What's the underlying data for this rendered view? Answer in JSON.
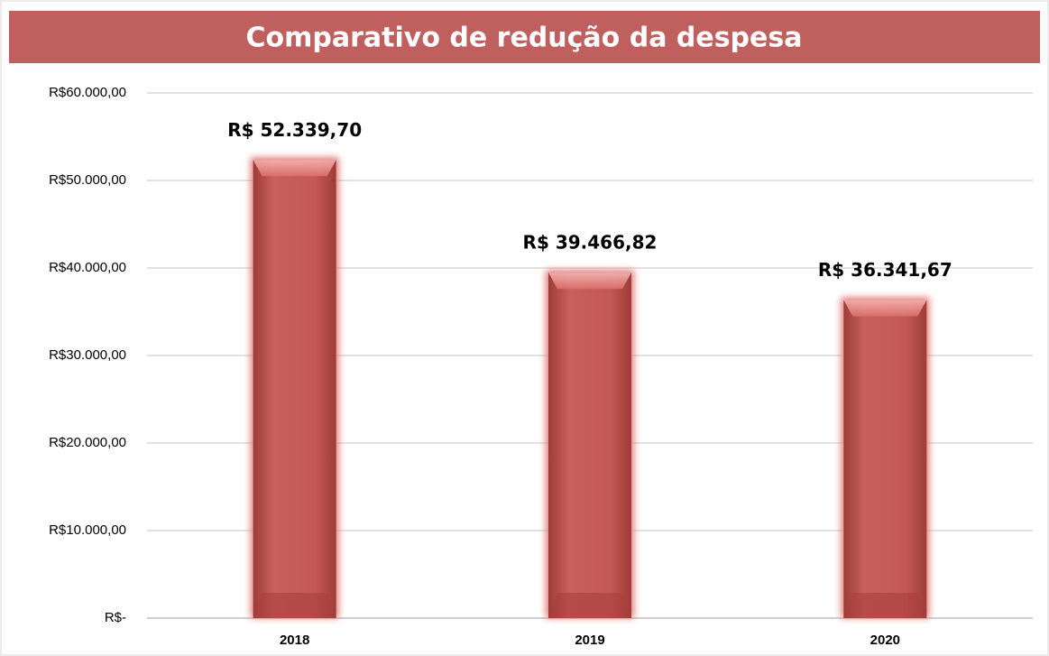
{
  "chart_data": {
    "type": "bar",
    "title": "Comparativo de redução da despesa",
    "categories": [
      "2018",
      "2019",
      "2020"
    ],
    "values": [
      52339.7,
      39466.82,
      36341.67
    ],
    "value_labels": [
      "R$ 52.339,70",
      "R$ 39.466,82",
      "R$ 36.341,67"
    ],
    "color": "#c0504d",
    "ylim": [
      0,
      60000
    ],
    "yticks": [
      {
        "value": 0,
        "label": "R$-"
      },
      {
        "value": 10000,
        "label": "R$10.000,00"
      },
      {
        "value": 20000,
        "label": "R$20.000,00"
      },
      {
        "value": 30000,
        "label": "R$30.000,00"
      },
      {
        "value": 40000,
        "label": "R$40.000,00"
      },
      {
        "value": 50000,
        "label": "R$50.000,00"
      },
      {
        "value": 60000,
        "label": "R$60.000,00"
      }
    ],
    "grid": true
  }
}
